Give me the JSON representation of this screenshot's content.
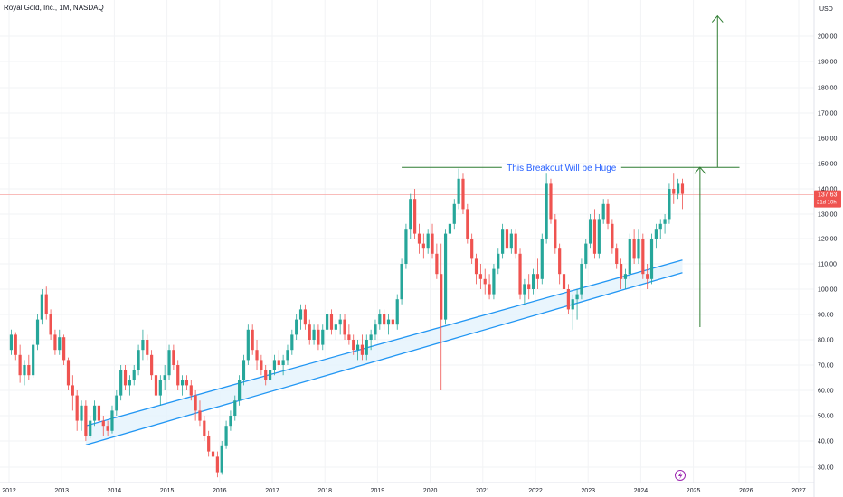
{
  "header": {
    "title": "Royal Gold, Inc., 1M, NASDAQ"
  },
  "scale": {
    "currency": "USD"
  },
  "price_tag": {
    "price": "137.63",
    "countdown": "21d 10h"
  },
  "annotation": {
    "text": "This Breakout Will be Huge"
  },
  "colors": {
    "up": "#26a69a",
    "down": "#ef5350",
    "trend": "#2196f3",
    "band": "#e3f2fd",
    "arrow": "#2e7d32",
    "annot": "#2962ff",
    "price_line": "#f7a5a3",
    "flash": "#9c27b0"
  },
  "chart_data": {
    "type": "candlestick",
    "symbol": "Royal Gold, Inc.",
    "interval": "1M",
    "exchange": "NASDAQ",
    "ylim": [
      25,
      210
    ],
    "xlim": [
      "2012-01",
      "2027-06"
    ],
    "yticks": [
      30,
      40,
      50,
      60,
      70,
      80,
      90,
      100,
      110,
      120,
      130,
      140,
      150,
      160,
      170,
      180,
      190,
      200
    ],
    "ytick_labels": [
      "30.00",
      "40.00",
      "50.00",
      "60.00",
      "70.00",
      "80.00",
      "90.00",
      "100.00",
      "110.00",
      "120.00",
      "130.00",
      "140.00",
      "150.00",
      "160.00",
      "170.00",
      "180.00",
      "190.00",
      "200.00"
    ],
    "xticks": [
      "2012",
      "2013",
      "2014",
      "2015",
      "2016",
      "2017",
      "2018",
      "2019",
      "2020",
      "2021",
      "2022",
      "2023",
      "2024",
      "2025",
      "2026",
      "2027"
    ],
    "candles": [
      [
        "2012-01",
        76,
        84,
        74,
        82
      ],
      [
        "2012-02",
        82,
        83,
        72,
        74
      ],
      [
        "2012-03",
        74,
        78,
        63,
        66
      ],
      [
        "2012-04",
        66,
        72,
        62,
        70
      ],
      [
        "2012-05",
        70,
        74,
        64,
        66
      ],
      [
        "2012-06",
        66,
        80,
        65,
        78
      ],
      [
        "2012-07",
        78,
        90,
        76,
        88
      ],
      [
        "2012-08",
        88,
        100,
        86,
        98
      ],
      [
        "2012-09",
        98,
        101,
        88,
        90
      ],
      [
        "2012-10",
        90,
        92,
        80,
        82
      ],
      [
        "2012-11",
        82,
        84,
        74,
        76
      ],
      [
        "2012-12",
        76,
        84,
        74,
        81
      ],
      [
        "2013-01",
        81,
        82,
        70,
        72
      ],
      [
        "2013-02",
        72,
        73,
        60,
        62
      ],
      [
        "2013-03",
        62,
        66,
        52,
        58
      ],
      [
        "2013-04",
        58,
        60,
        44,
        48
      ],
      [
        "2013-05",
        48,
        56,
        44,
        54
      ],
      [
        "2013-06",
        54,
        56,
        40,
        42
      ],
      [
        "2013-07",
        42,
        50,
        41,
        48
      ],
      [
        "2013-08",
        48,
        56,
        46,
        54
      ],
      [
        "2013-09",
        54,
        55,
        46,
        48
      ],
      [
        "2013-10",
        48,
        50,
        42,
        46
      ],
      [
        "2013-11",
        46,
        48,
        42,
        44
      ],
      [
        "2013-12",
        44,
        54,
        43,
        52
      ],
      [
        "2014-01",
        52,
        60,
        50,
        58
      ],
      [
        "2014-02",
        58,
        70,
        56,
        68
      ],
      [
        "2014-03",
        68,
        70,
        60,
        62
      ],
      [
        "2014-04",
        62,
        66,
        58,
        64
      ],
      [
        "2014-05",
        64,
        70,
        62,
        68
      ],
      [
        "2014-06",
        68,
        78,
        66,
        76
      ],
      [
        "2014-07",
        76,
        84,
        72,
        80
      ],
      [
        "2014-08",
        80,
        82,
        72,
        74
      ],
      [
        "2014-09",
        74,
        76,
        64,
        66
      ],
      [
        "2014-10",
        66,
        68,
        56,
        58
      ],
      [
        "2014-11",
        58,
        66,
        54,
        64
      ],
      [
        "2014-12",
        64,
        70,
        60,
        66
      ],
      [
        "2015-01",
        66,
        78,
        64,
        76
      ],
      [
        "2015-02",
        76,
        78,
        68,
        70
      ],
      [
        "2015-03",
        70,
        72,
        60,
        62
      ],
      [
        "2015-04",
        62,
        66,
        58,
        64
      ],
      [
        "2015-05",
        64,
        66,
        60,
        62
      ],
      [
        "2015-06",
        62,
        64,
        56,
        58
      ],
      [
        "2015-07",
        58,
        60,
        48,
        52
      ],
      [
        "2015-08",
        52,
        56,
        46,
        48
      ],
      [
        "2015-09",
        48,
        50,
        40,
        42
      ],
      [
        "2015-10",
        42,
        44,
        34,
        36
      ],
      [
        "2015-11",
        36,
        40,
        30,
        34
      ],
      [
        "2015-12",
        34,
        36,
        26,
        28
      ],
      [
        "2016-01",
        28,
        40,
        27,
        38
      ],
      [
        "2016-02",
        38,
        48,
        37,
        46
      ],
      [
        "2016-03",
        46,
        52,
        44,
        50
      ],
      [
        "2016-04",
        50,
        58,
        48,
        56
      ],
      [
        "2016-05",
        56,
        66,
        54,
        64
      ],
      [
        "2016-06",
        64,
        74,
        62,
        72
      ],
      [
        "2016-07",
        72,
        86,
        70,
        84
      ],
      [
        "2016-08",
        84,
        86,
        74,
        76
      ],
      [
        "2016-09",
        76,
        80,
        68,
        72
      ],
      [
        "2016-10",
        72,
        74,
        66,
        68
      ],
      [
        "2016-11",
        68,
        70,
        62,
        64
      ],
      [
        "2016-12",
        64,
        70,
        62,
        68
      ],
      [
        "2017-01",
        68,
        74,
        66,
        72
      ],
      [
        "2017-02",
        72,
        76,
        68,
        70
      ],
      [
        "2017-03",
        70,
        74,
        66,
        72
      ],
      [
        "2017-04",
        72,
        78,
        70,
        76
      ],
      [
        "2017-05",
        76,
        84,
        74,
        82
      ],
      [
        "2017-06",
        82,
        90,
        80,
        88
      ],
      [
        "2017-07",
        88,
        94,
        84,
        92
      ],
      [
        "2017-08",
        92,
        94,
        84,
        86
      ],
      [
        "2017-09",
        86,
        88,
        78,
        80
      ],
      [
        "2017-10",
        80,
        86,
        78,
        84
      ],
      [
        "2017-11",
        84,
        86,
        76,
        78
      ],
      [
        "2017-12",
        78,
        86,
        76,
        84
      ],
      [
        "2018-01",
        84,
        92,
        82,
        90
      ],
      [
        "2018-02",
        90,
        92,
        82,
        84
      ],
      [
        "2018-03",
        84,
        88,
        80,
        86
      ],
      [
        "2018-04",
        86,
        90,
        82,
        88
      ],
      [
        "2018-05",
        88,
        90,
        80,
        82
      ],
      [
        "2018-06",
        82,
        86,
        78,
        80
      ],
      [
        "2018-07",
        80,
        82,
        74,
        76
      ],
      [
        "2018-08",
        76,
        80,
        72,
        78
      ],
      [
        "2018-09",
        78,
        82,
        72,
        74
      ],
      [
        "2018-10",
        74,
        82,
        72,
        80
      ],
      [
        "2018-11",
        80,
        84,
        76,
        82
      ],
      [
        "2018-12",
        82,
        88,
        80,
        86
      ],
      [
        "2019-01",
        86,
        92,
        84,
        90
      ],
      [
        "2019-02",
        90,
        92,
        84,
        86
      ],
      [
        "2019-03",
        86,
        90,
        82,
        88
      ],
      [
        "2019-04",
        88,
        90,
        84,
        86
      ],
      [
        "2019-05",
        86,
        98,
        84,
        96
      ],
      [
        "2019-06",
        96,
        112,
        94,
        110
      ],
      [
        "2019-07",
        110,
        126,
        108,
        124
      ],
      [
        "2019-08",
        124,
        138,
        120,
        136
      ],
      [
        "2019-09",
        136,
        140,
        120,
        122
      ],
      [
        "2019-10",
        122,
        126,
        114,
        118
      ],
      [
        "2019-11",
        118,
        122,
        112,
        116
      ],
      [
        "2019-12",
        116,
        124,
        114,
        122
      ],
      [
        "2020-01",
        122,
        126,
        112,
        114
      ],
      [
        "2020-02",
        114,
        118,
        104,
        106
      ],
      [
        "2020-03",
        106,
        118,
        60,
        88
      ],
      [
        "2020-04",
        88,
        124,
        86,
        122
      ],
      [
        "2020-05",
        122,
        128,
        118,
        126
      ],
      [
        "2020-06",
        126,
        136,
        124,
        134
      ],
      [
        "2020-07",
        134,
        148,
        132,
        144
      ],
      [
        "2020-08",
        144,
        146,
        130,
        132
      ],
      [
        "2020-09",
        132,
        134,
        118,
        120
      ],
      [
        "2020-10",
        120,
        122,
        110,
        112
      ],
      [
        "2020-11",
        112,
        114,
        102,
        106
      ],
      [
        "2020-12",
        106,
        110,
        100,
        104
      ],
      [
        "2021-01",
        104,
        108,
        98,
        102
      ],
      [
        "2021-02",
        102,
        106,
        96,
        98
      ],
      [
        "2021-03",
        98,
        110,
        96,
        108
      ],
      [
        "2021-04",
        108,
        116,
        106,
        114
      ],
      [
        "2021-05",
        114,
        126,
        112,
        124
      ],
      [
        "2021-06",
        124,
        126,
        114,
        116
      ],
      [
        "2021-07",
        116,
        124,
        114,
        122
      ],
      [
        "2021-08",
        122,
        124,
        112,
        114
      ],
      [
        "2021-09",
        114,
        116,
        96,
        98
      ],
      [
        "2021-10",
        98,
        104,
        94,
        102
      ],
      [
        "2021-11",
        102,
        106,
        96,
        100
      ],
      [
        "2021-12",
        100,
        108,
        98,
        106
      ],
      [
        "2022-01",
        106,
        112,
        100,
        104
      ],
      [
        "2022-02",
        104,
        122,
        102,
        120
      ],
      [
        "2022-03",
        120,
        146,
        118,
        142
      ],
      [
        "2022-04",
        142,
        144,
        126,
        128
      ],
      [
        "2022-05",
        128,
        130,
        114,
        116
      ],
      [
        "2022-06",
        116,
        118,
        102,
        106
      ],
      [
        "2022-07",
        106,
        108,
        96,
        100
      ],
      [
        "2022-08",
        100,
        102,
        90,
        92
      ],
      [
        "2022-09",
        92,
        98,
        84,
        96
      ],
      [
        "2022-10",
        96,
        100,
        88,
        98
      ],
      [
        "2022-11",
        98,
        112,
        96,
        110
      ],
      [
        "2022-12",
        110,
        120,
        108,
        118
      ],
      [
        "2023-01",
        118,
        130,
        116,
        128
      ],
      [
        "2023-02",
        128,
        132,
        112,
        114
      ],
      [
        "2023-03",
        114,
        130,
        112,
        128
      ],
      [
        "2023-04",
        128,
        136,
        126,
        134
      ],
      [
        "2023-05",
        134,
        136,
        124,
        126
      ],
      [
        "2023-06",
        126,
        128,
        114,
        116
      ],
      [
        "2023-07",
        116,
        118,
        108,
        110
      ],
      [
        "2023-08",
        110,
        112,
        100,
        104
      ],
      [
        "2023-09",
        104,
        108,
        100,
        106
      ],
      [
        "2023-10",
        106,
        122,
        104,
        120
      ],
      [
        "2023-11",
        120,
        124,
        110,
        112
      ],
      [
        "2023-12",
        112,
        124,
        110,
        120
      ],
      [
        "2024-01",
        120,
        122,
        104,
        106
      ],
      [
        "2024-02",
        106,
        110,
        100,
        104
      ],
      [
        "2024-03",
        104,
        122,
        102,
        120
      ],
      [
        "2024-04",
        120,
        126,
        116,
        124
      ],
      [
        "2024-05",
        124,
        128,
        120,
        126
      ],
      [
        "2024-06",
        126,
        130,
        122,
        128
      ],
      [
        "2024-07",
        128,
        142,
        126,
        140
      ],
      [
        "2024-08",
        140,
        146,
        134,
        138
      ],
      [
        "2024-09",
        138,
        144,
        136,
        142
      ],
      [
        "2024-10",
        142,
        144,
        132,
        138
      ]
    ],
    "current_price": 137.63,
    "drawings": {
      "channel_upper": [
        [
          "2013-06",
          46.0
        ],
        [
          "2024-10",
          111.5
        ]
      ],
      "channel_lower": [
        [
          "2013-06",
          38.5
        ],
        [
          "2024-10",
          106.5
        ]
      ],
      "resistance": {
        "from": "2019-06",
        "to": "2025-11",
        "price": 148.5
      },
      "target_arrow_1": {
        "x": "2025-02",
        "from": 85,
        "to": 148.5
      },
      "target_arrow_2": {
        "x": "2025-06",
        "from": 148.5,
        "to": 208
      }
    }
  }
}
